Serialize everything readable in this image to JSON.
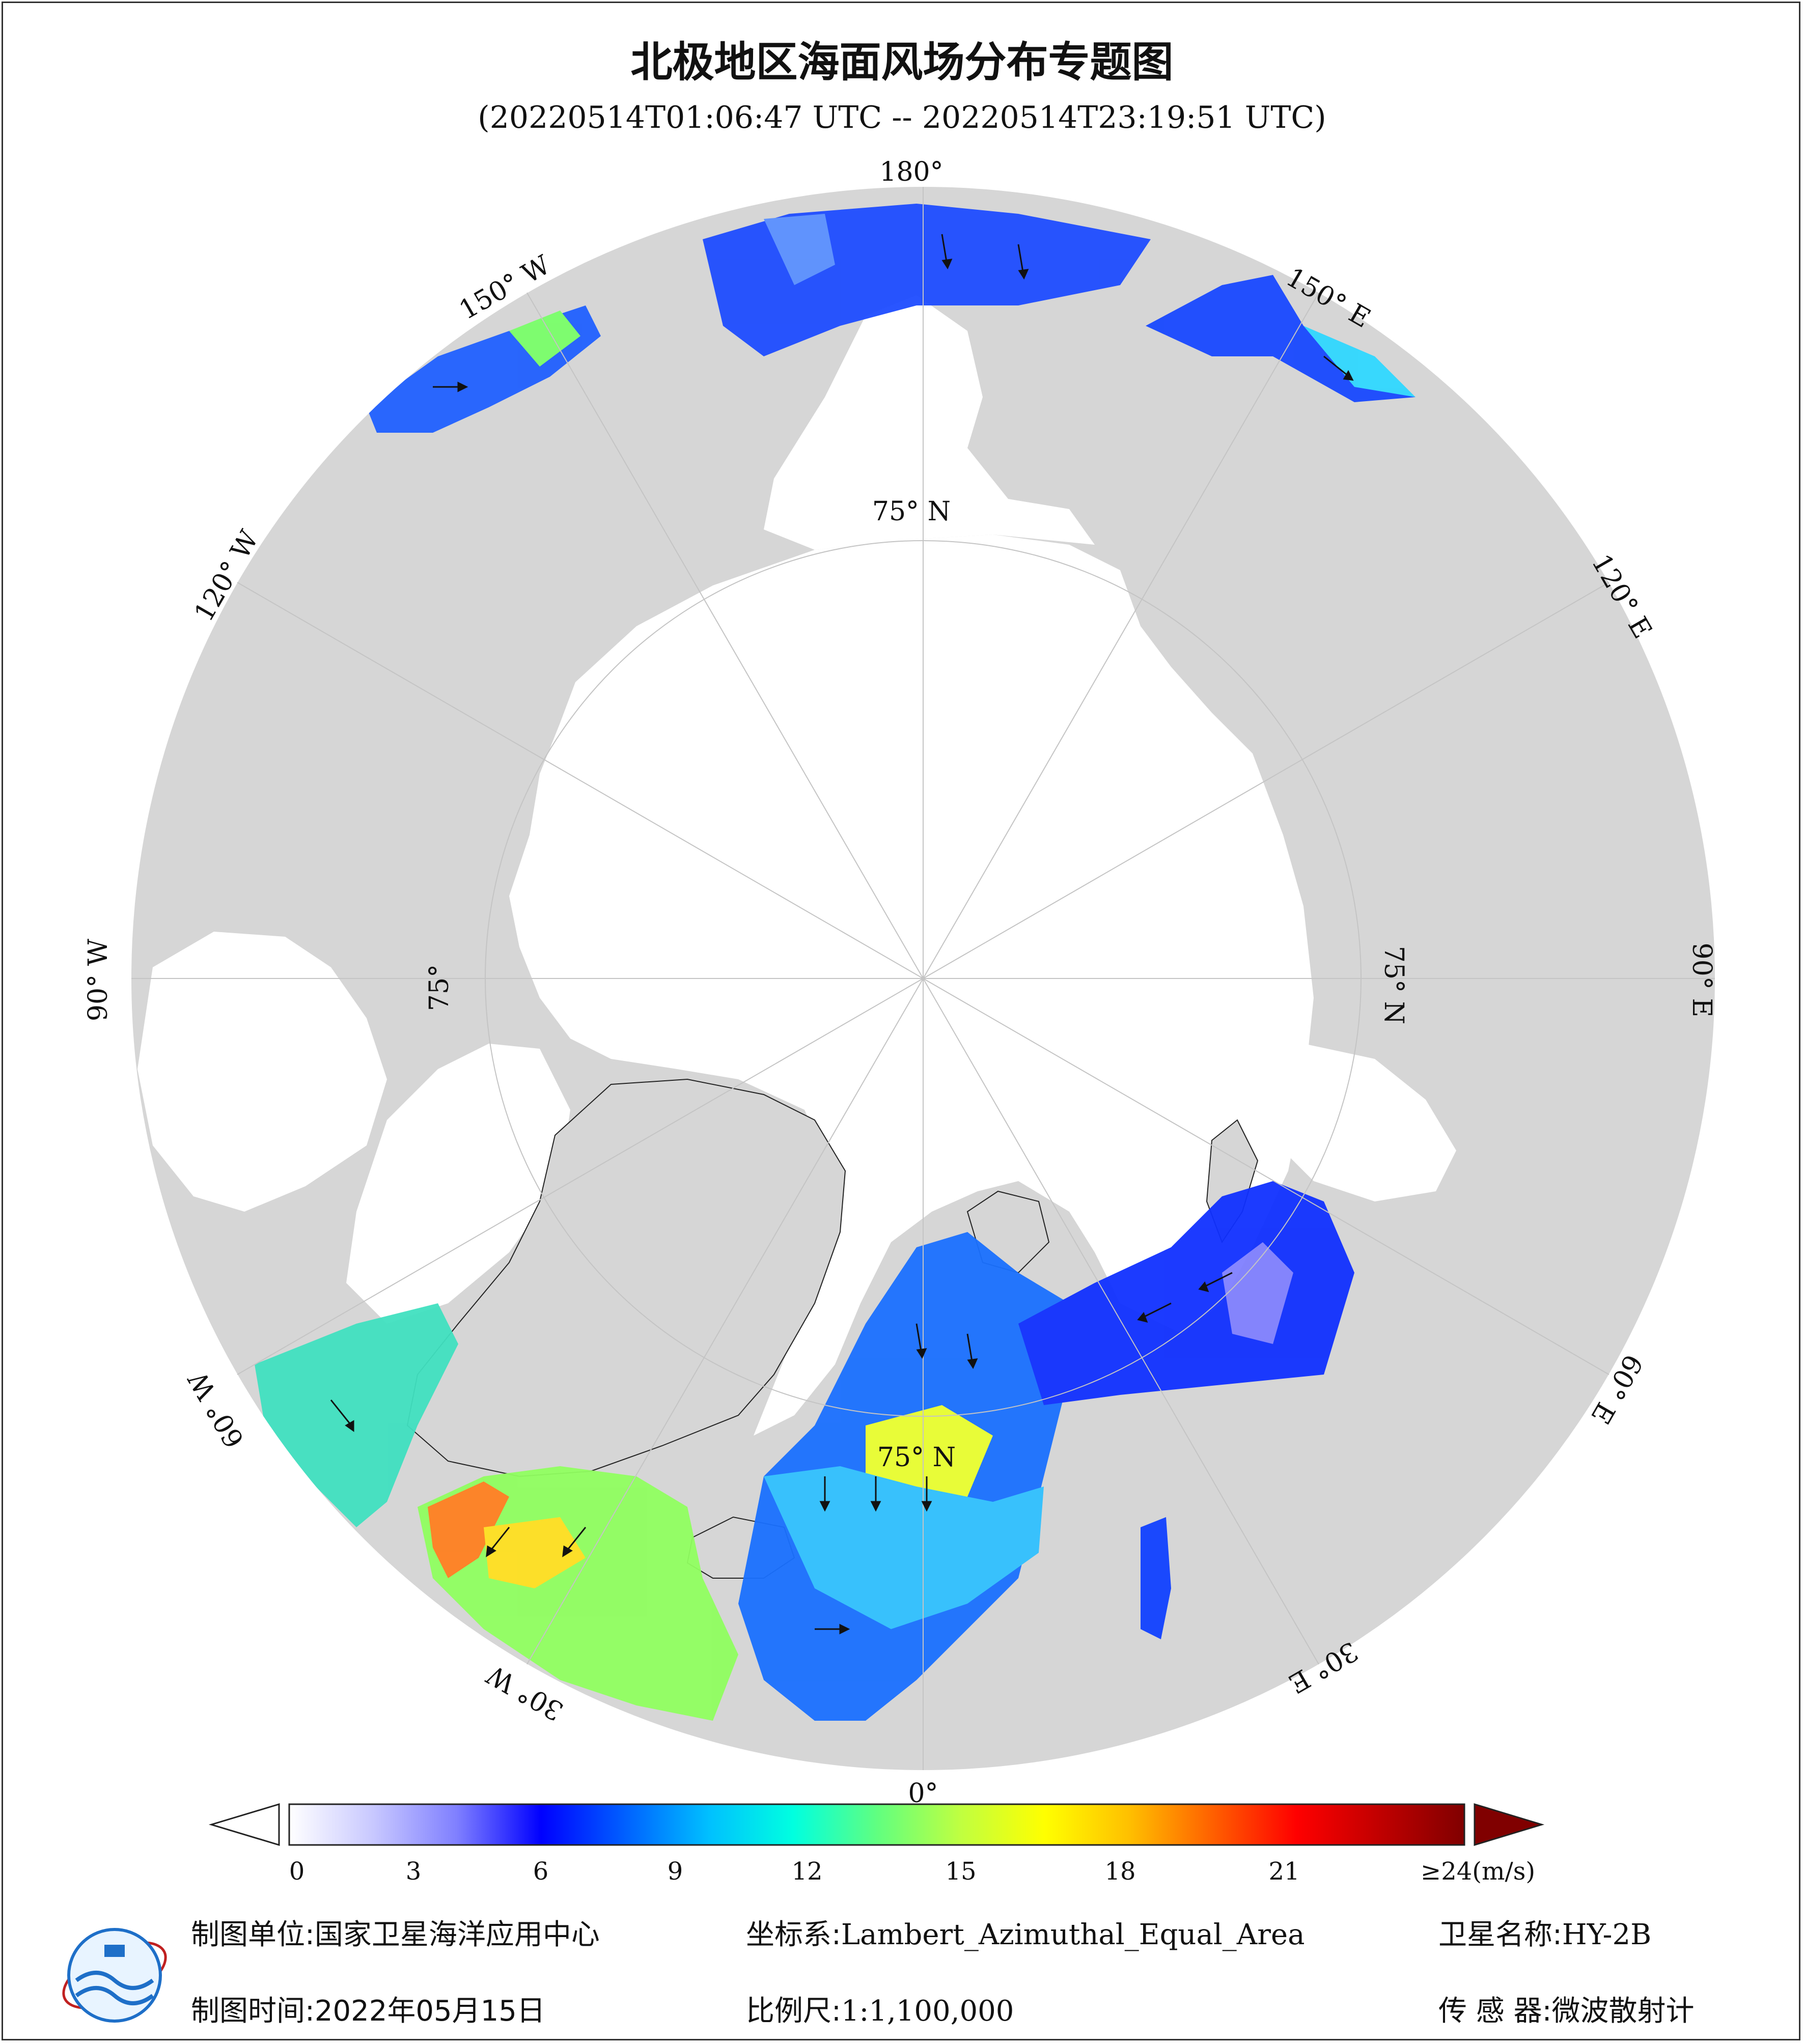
{
  "title": "北极地区海面风场分布专题图",
  "subtitle": "(20220514T01:06:47 UTC -- 20220514T23:19:51 UTC)",
  "map": {
    "projection": "Lambert_Azimuthal_Equal_Area",
    "center": "North Pole",
    "land_color": "#d6d6d6",
    "ice_color": "#ffffff",
    "graticule_color": "#c0c0c0",
    "longitude_labels": [
      {
        "lon": 180,
        "text": "180°"
      },
      {
        "lon": -150,
        "text": "150° W"
      },
      {
        "lon": 150,
        "text": "150° E"
      },
      {
        "lon": -120,
        "text": "120° W"
      },
      {
        "lon": 120,
        "text": "120° E"
      },
      {
        "lon": -90,
        "text": "90° W"
      },
      {
        "lon": 90,
        "text": "90° E"
      },
      {
        "lon": -60,
        "text": "60° W"
      },
      {
        "lon": 60,
        "text": "60° E"
      },
      {
        "lon": -30,
        "text": "30° W"
      },
      {
        "lon": 30,
        "text": "30° E"
      },
      {
        "lon": 0,
        "text": "0°"
      }
    ],
    "latitude_labels": [
      {
        "lon": 180,
        "text": "75° N"
      },
      {
        "lon": 90,
        "text": "75° N"
      },
      {
        "lon": 0,
        "text": "75° N"
      },
      {
        "lon": -90,
        "text": "75°"
      }
    ]
  },
  "colorbar": {
    "ticks": [
      "0",
      "3",
      "6",
      "9",
      "12",
      "15",
      "18",
      "21"
    ],
    "last_label": "≥24",
    "unit": "(m/s)",
    "min": 0,
    "max": 24,
    "stops": [
      "#ffffff",
      "#c8c8ff",
      "#7f7fff",
      "#0000ff",
      "#0060ff",
      "#00c0ff",
      "#00ffe0",
      "#60ff80",
      "#c0ff40",
      "#ffff00",
      "#ffc000",
      "#ff6000",
      "#ff0000",
      "#c00000",
      "#800000"
    ]
  },
  "footer": {
    "unit_label": "制图单位:",
    "unit_value": "国家卫星海洋应用中心",
    "coord_label": "坐标系:",
    "coord_value": "Lambert_Azimuthal_Equal_Area",
    "satellite_label": "卫星名称:",
    "satellite_value": "HY-2B",
    "date_label": "制图时间:",
    "date_value": "2022年05月15日",
    "scale_label": "比例尺:",
    "scale_value": "1:1,100,000",
    "sensor_label": "传 感 器:",
    "sensor_value": "微波散射计"
  }
}
